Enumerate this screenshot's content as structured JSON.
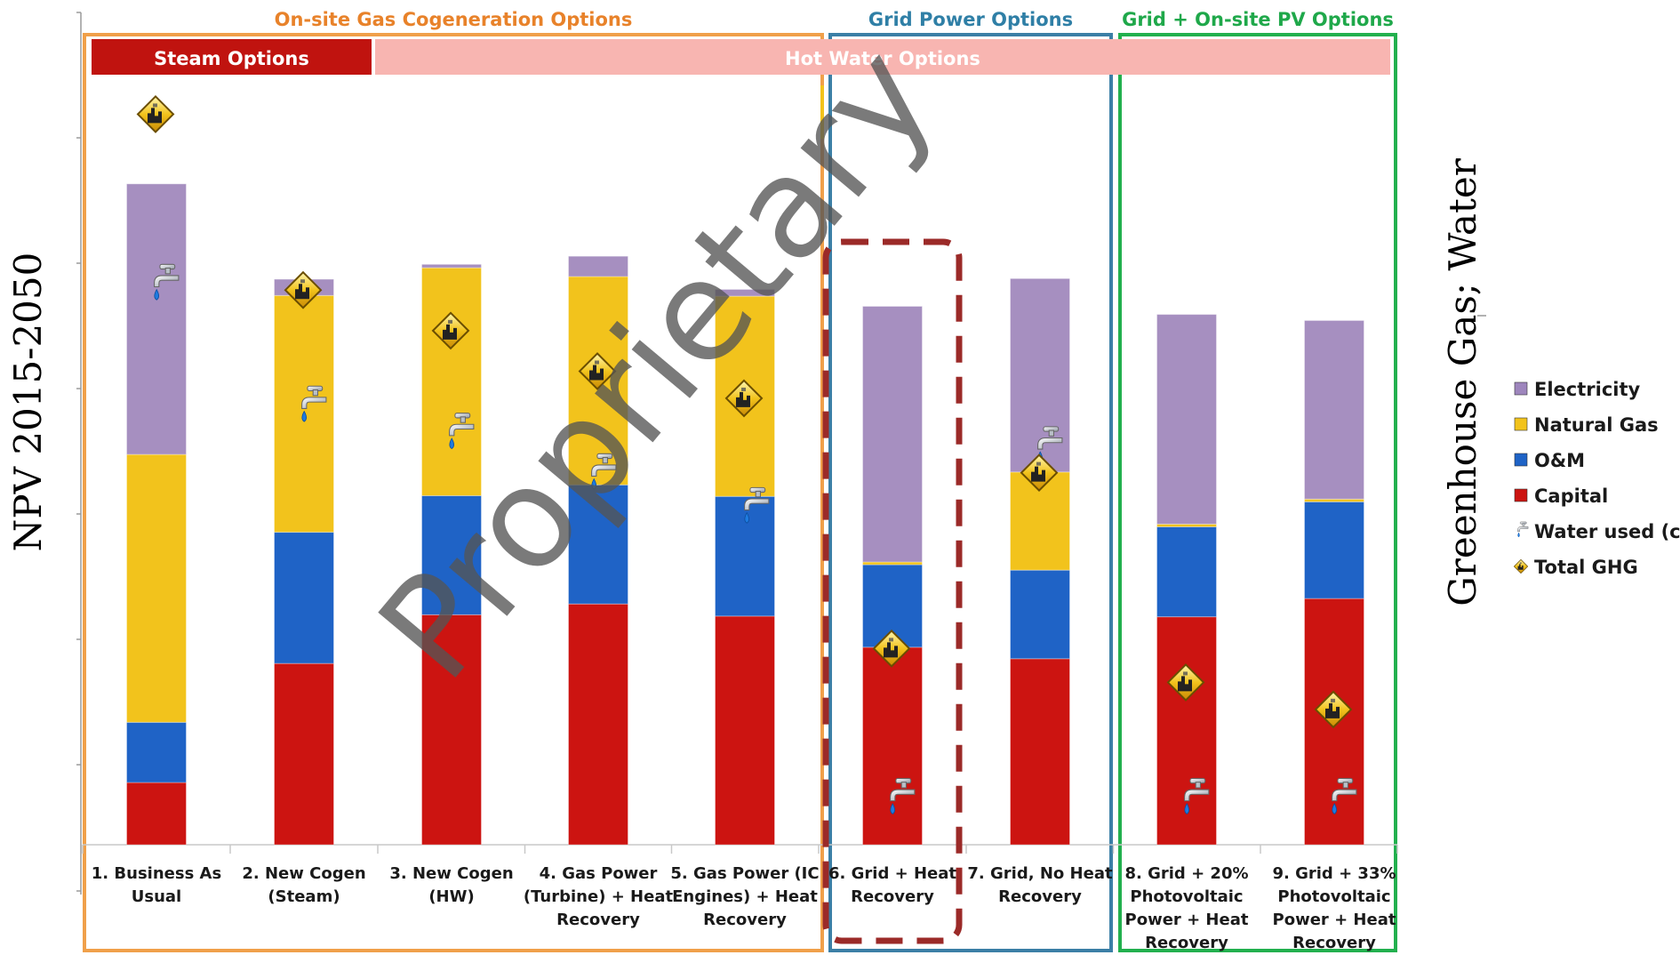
{
  "chart_data": {
    "type": "bar",
    "stacked": true,
    "ylabel": "NPV 2015-2050",
    "y2label": "Greenhouse Gas; Water",
    "watermark": "Proprietary",
    "ylim": [
      0,
      100
    ],
    "y2lim": [
      0,
      100
    ],
    "categories": [
      [
        "1. Business As",
        "Usual"
      ],
      [
        "2. New Cogen",
        "(Steam)"
      ],
      [
        "3. New Cogen",
        "(HW)"
      ],
      [
        "4. Gas Power",
        "(Turbine) + Heat",
        "Recovery"
      ],
      [
        "5. Gas Power (IC",
        "Engines) + Heat",
        "Recovery"
      ],
      [
        "6. Grid + Heat",
        "Recovery"
      ],
      [
        "7. Grid, No Heat",
        "Recovery"
      ],
      [
        "8. Grid + 20%",
        "Photovoltaic",
        "Power + Heat",
        "Recovery"
      ],
      [
        "9. Grid + 33%",
        "Photovoltaic",
        "Power + Heat",
        "Recovery"
      ]
    ],
    "series": [
      {
        "name": "Capital",
        "color": "#cc1411",
        "values": [
          9.2,
          26.8,
          34,
          35.6,
          33.8,
          29.2,
          27.5,
          33.7,
          36.4
        ]
      },
      {
        "name": "O&M",
        "color": "#1f63c6",
        "values": [
          8.9,
          19.4,
          17.6,
          17.6,
          17.7,
          12.2,
          13.1,
          13.3,
          14.3
        ]
      },
      {
        "name": "Natural Gas",
        "color": "#f2c31c",
        "values": [
          39.6,
          35,
          33.7,
          30.8,
          29.6,
          0.4,
          14.5,
          0.4,
          0.4
        ]
      },
      {
        "name": "Electricity",
        "color": "#a68fc0",
        "values": [
          40,
          2.4,
          0.5,
          3,
          1,
          37.8,
          28.6,
          31,
          26.4
        ]
      }
    ],
    "markers": [
      {
        "name": "Water used (ccf)",
        "icon": "faucet-icon",
        "values": [
          82,
          64,
          60,
          54,
          49,
          6,
          58,
          6,
          6
        ]
      },
      {
        "name": "Total GHG",
        "icon": "ghg-diamond-icon",
        "values": [
          108,
          82,
          76,
          70,
          66,
          29,
          55,
          24,
          20
        ]
      }
    ],
    "legend": {
      "placement": "right",
      "items": [
        {
          "label": "Electricity",
          "color": "#9e86bd"
        },
        {
          "label": "Natural Gas",
          "color": "#f2c31c"
        },
        {
          "label": "O&M",
          "color": "#1f63c6"
        },
        {
          "label": "Capital",
          "color": "#cc1411"
        },
        {
          "label": "Water used (ccf)",
          "icon": "faucet-icon"
        },
        {
          "label": "Total GHG",
          "icon": "ghg-diamond-icon"
        }
      ]
    },
    "groups": [
      {
        "label": "On-site Gas Cogeneration Options",
        "color": "#f0a04a",
        "text_color": "#e8822a"
      },
      {
        "label": "Grid Power Options",
        "color": "#3b7fa6",
        "text_color": "#2f7fa6"
      },
      {
        "label": "Grid + On-site PV Options",
        "color": "#22b04e",
        "text_color": "#1fa84a"
      }
    ],
    "subgroups": [
      {
        "label": "Steam Options",
        "color": "#c0130f"
      },
      {
        "label": "Hot Water Options",
        "color": "#f8b5b1"
      }
    ],
    "highlight": {
      "category_index": 5,
      "style": "dashed",
      "color": "#9b2a28"
    }
  }
}
